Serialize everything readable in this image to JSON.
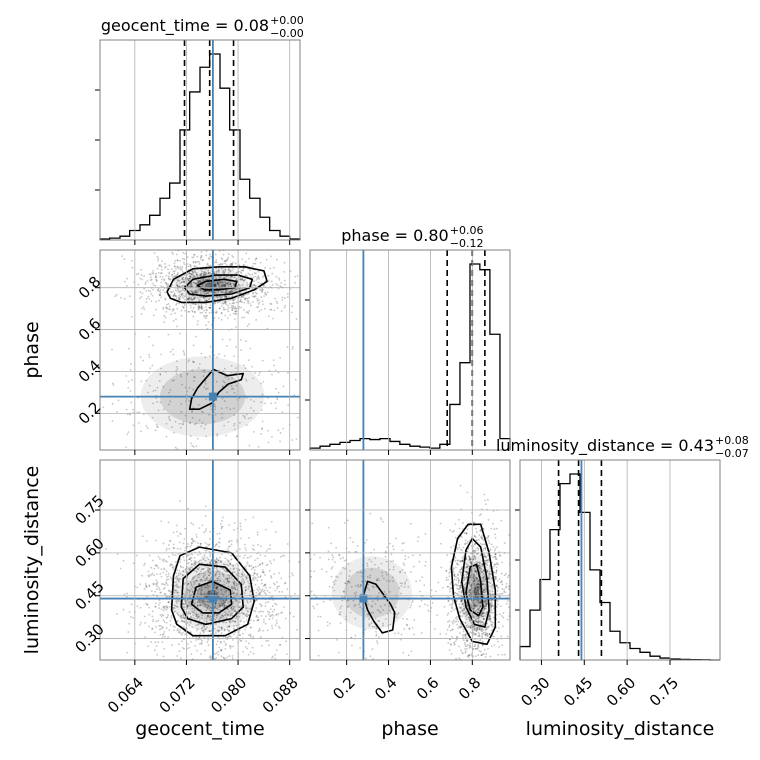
{
  "chart_data": {
    "type": "corner",
    "parameters": [
      "geocent_time",
      "phase",
      "luminosity_distance"
    ],
    "axis_labels": {
      "geocent_time": "geocent_time",
      "phase": "phase",
      "luminosity_distance": "luminosity_distance"
    },
    "ranges": {
      "geocent_time": [
        0.0586,
        0.0896
      ],
      "phase": [
        0.025,
        0.98
      ],
      "luminosity_distance": [
        0.225,
        0.925
      ]
    },
    "ticks": {
      "geocent_time": {
        "values": [
          0.064,
          0.072,
          0.08,
          0.088
        ],
        "labels": [
          "0.064",
          "0.072",
          "0.080",
          "0.088"
        ]
      },
      "phase": {
        "values": [
          0.2,
          0.4,
          0.6,
          0.8
        ],
        "labels": [
          "0.2",
          "0.4",
          "0.6",
          "0.8"
        ]
      },
      "luminosity_distance": {
        "values": [
          0.3,
          0.45,
          0.6,
          0.75
        ],
        "labels": [
          "0.30",
          "0.45",
          "0.60",
          "0.75"
        ]
      }
    },
    "truths": {
      "geocent_time": 0.0761,
      "phase": 0.28,
      "luminosity_distance": 0.44
    },
    "titles": [
      {
        "param": "geocent_time",
        "text": "geocent_time = 0.08",
        "plus": "+0.00",
        "minus": "−0.00"
      },
      {
        "param": "phase",
        "text": "phase = 0.80",
        "plus": "+0.06",
        "minus": "−0.12"
      },
      {
        "param": "luminosity_distance",
        "text": "luminosity_distance = 0.43",
        "plus": "+0.08",
        "minus": "−0.07"
      }
    ],
    "quantiles": {
      "geocent_time": [
        0.0717,
        0.0756,
        0.0793
      ],
      "phase": [
        0.68,
        0.8,
        0.86
      ],
      "luminosity_distance": [
        0.36,
        0.43,
        0.51
      ]
    },
    "histograms": {
      "geocent_time": {
        "edges": [
          0.0586,
          0.0601,
          0.0617,
          0.0632,
          0.0648,
          0.0663,
          0.0679,
          0.0694,
          0.071,
          0.0725,
          0.0741,
          0.0756,
          0.0772,
          0.0787,
          0.0803,
          0.0818,
          0.0834,
          0.0849,
          0.0865,
          0.088,
          0.0896
        ],
        "counts": [
          0.005,
          0.01,
          0.02,
          0.05,
          0.08,
          0.13,
          0.22,
          0.3,
          0.58,
          0.78,
          0.91,
          0.98,
          0.8,
          0.58,
          0.32,
          0.22,
          0.12,
          0.05,
          0.02,
          0.005
        ]
      },
      "phase": {
        "edges": [
          0.025,
          0.073,
          0.12,
          0.168,
          0.216,
          0.264,
          0.311,
          0.359,
          0.407,
          0.454,
          0.502,
          0.55,
          0.598,
          0.645,
          0.693,
          0.741,
          0.789,
          0.836,
          0.884,
          0.932,
          0.98
        ],
        "counts": [
          0.01,
          0.02,
          0.03,
          0.04,
          0.05,
          0.06,
          0.055,
          0.06,
          0.045,
          0.03,
          0.02,
          0.015,
          0.01,
          0.03,
          0.24,
          0.46,
          0.98,
          0.95,
          0.61,
          0.06
        ]
      },
      "luminosity_distance": {
        "edges": [
          0.225,
          0.26,
          0.295,
          0.33,
          0.365,
          0.4,
          0.435,
          0.47,
          0.505,
          0.54,
          0.575,
          0.61,
          0.645,
          0.68,
          0.715,
          0.75,
          0.785,
          0.82,
          0.855,
          0.89,
          0.925
        ],
        "counts": [
          0.07,
          0.26,
          0.42,
          0.68,
          0.92,
          0.97,
          0.77,
          0.47,
          0.3,
          0.15,
          0.09,
          0.06,
          0.04,
          0.02,
          0.01,
          0.005,
          0.003,
          0.002,
          0.001,
          0.0
        ]
      }
    },
    "density_clusters": {
      "geocent_time_phase": [
        {
          "x": 0.0758,
          "y": 0.81,
          "sx": 0.0036,
          "sy": 0.055,
          "weight": 0.78
        },
        {
          "x": 0.0745,
          "y": 0.28,
          "sx": 0.006,
          "sy": 0.12,
          "weight": 0.22
        }
      ],
      "geocent_time_luminosity_distance": [
        {
          "x": 0.076,
          "y": 0.45,
          "sx": 0.004,
          "sy": 0.08,
          "weight": 1.0
        }
      ],
      "phase_luminosity_distance": [
        {
          "x": 0.82,
          "y": 0.46,
          "sx": 0.05,
          "sy": 0.085,
          "weight": 0.78
        },
        {
          "x": 0.32,
          "y": 0.46,
          "sx": 0.12,
          "sy": 0.08,
          "weight": 0.22
        }
      ]
    },
    "contours": {
      "geocent_time_phase": [
        [
          [
            0.069,
            0.78
          ],
          [
            0.07,
            0.84
          ],
          [
            0.073,
            0.89
          ],
          [
            0.077,
            0.9
          ],
          [
            0.081,
            0.9
          ],
          [
            0.084,
            0.88
          ],
          [
            0.0845,
            0.83
          ],
          [
            0.0825,
            0.79
          ],
          [
            0.079,
            0.75
          ],
          [
            0.075,
            0.73
          ],
          [
            0.0712,
            0.73
          ],
          [
            0.0695,
            0.75
          ]
        ],
        [
          [
            0.0717,
            0.8
          ],
          [
            0.073,
            0.84
          ],
          [
            0.0765,
            0.86
          ],
          [
            0.08,
            0.86
          ],
          [
            0.0822,
            0.84
          ],
          [
            0.0818,
            0.8
          ],
          [
            0.079,
            0.77
          ],
          [
            0.075,
            0.76
          ],
          [
            0.0725,
            0.77
          ]
        ],
        [
          [
            0.0737,
            0.81
          ],
          [
            0.075,
            0.83
          ],
          [
            0.0778,
            0.84
          ],
          [
            0.0798,
            0.83
          ],
          [
            0.0795,
            0.8
          ],
          [
            0.077,
            0.79
          ],
          [
            0.0748,
            0.79
          ]
        ],
        [
          [
            0.0725,
            0.22
          ],
          [
            0.0728,
            0.27
          ],
          [
            0.0737,
            0.32
          ],
          [
            0.0748,
            0.36
          ],
          [
            0.0762,
            0.41
          ],
          [
            0.0783,
            0.38
          ],
          [
            0.0808,
            0.39
          ],
          [
            0.0805,
            0.36
          ],
          [
            0.0785,
            0.34
          ],
          [
            0.077,
            0.3
          ],
          [
            0.076,
            0.25
          ],
          [
            0.074,
            0.22
          ]
        ]
      ],
      "geocent_time_luminosity_distance": [
        [
          [
            0.0697,
            0.4
          ],
          [
            0.07,
            0.52
          ],
          [
            0.071,
            0.59
          ],
          [
            0.074,
            0.62
          ],
          [
            0.079,
            0.6
          ],
          [
            0.0818,
            0.52
          ],
          [
            0.0825,
            0.43
          ],
          [
            0.0815,
            0.35
          ],
          [
            0.078,
            0.31
          ],
          [
            0.073,
            0.31
          ],
          [
            0.0705,
            0.35
          ]
        ],
        [
          [
            0.0712,
            0.41
          ],
          [
            0.0715,
            0.51
          ],
          [
            0.074,
            0.56
          ],
          [
            0.078,
            0.55
          ],
          [
            0.0805,
            0.49
          ],
          [
            0.0808,
            0.41
          ],
          [
            0.079,
            0.37
          ],
          [
            0.075,
            0.35
          ],
          [
            0.0722,
            0.37
          ]
        ],
        [
          [
            0.0728,
            0.42
          ],
          [
            0.0735,
            0.48
          ],
          [
            0.076,
            0.5
          ],
          [
            0.0788,
            0.47
          ],
          [
            0.079,
            0.42
          ],
          [
            0.077,
            0.39
          ],
          [
            0.0745,
            0.39
          ]
        ]
      ],
      "phase_luminosity_distance": [
        [
          [
            0.7,
            0.55
          ],
          [
            0.73,
            0.65
          ],
          [
            0.78,
            0.7
          ],
          [
            0.84,
            0.7
          ],
          [
            0.88,
            0.6
          ],
          [
            0.91,
            0.47
          ],
          [
            0.91,
            0.34
          ],
          [
            0.87,
            0.28
          ],
          [
            0.8,
            0.29
          ],
          [
            0.74,
            0.37
          ],
          [
            0.71,
            0.45
          ]
        ],
        [
          [
            0.75,
            0.5
          ],
          [
            0.77,
            0.61
          ],
          [
            0.8,
            0.65
          ],
          [
            0.84,
            0.62
          ],
          [
            0.87,
            0.51
          ],
          [
            0.88,
            0.4
          ],
          [
            0.86,
            0.34
          ],
          [
            0.81,
            0.35
          ],
          [
            0.77,
            0.41
          ]
        ],
        [
          [
            0.77,
            0.46
          ],
          [
            0.79,
            0.55
          ],
          [
            0.82,
            0.56
          ],
          [
            0.84,
            0.5
          ],
          [
            0.85,
            0.41
          ],
          [
            0.83,
            0.38
          ],
          [
            0.79,
            0.4
          ]
        ],
        [
          [
            0.28,
            0.45
          ],
          [
            0.3,
            0.5
          ],
          [
            0.34,
            0.49
          ],
          [
            0.38,
            0.45
          ],
          [
            0.41,
            0.42
          ],
          [
            0.43,
            0.39
          ],
          [
            0.42,
            0.33
          ],
          [
            0.37,
            0.32
          ],
          [
            0.33,
            0.36
          ],
          [
            0.3,
            0.4
          ]
        ]
      ]
    },
    "grid": true,
    "colors": {
      "truth": "#4682b4",
      "line": "#000000",
      "grid": "#b0b0b0",
      "points": "#000000"
    }
  }
}
